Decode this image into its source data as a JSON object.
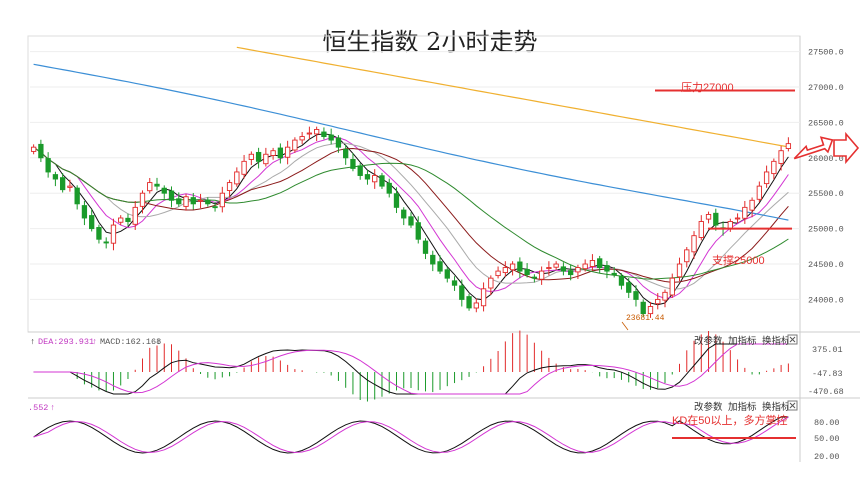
{
  "title": "恒生指数 2小时走势",
  "chart_data": {
    "type": "candlestick",
    "title": "恒生指数 2小时走势",
    "y_ticks": [
      "27500.0",
      "27000.0",
      "26500.0",
      "26000.0",
      "25500.0",
      "25000.0",
      "24500.0",
      "24000.0"
    ],
    "y_tick_values": [
      27500,
      27000,
      26500,
      26000,
      25500,
      25000,
      24500,
      24000
    ],
    "ylim": [
      23540,
      27720
    ],
    "low_label": "23681.44",
    "low_value": 23681.44,
    "annotations": {
      "resistance": {
        "label": "压力27000",
        "value": 26950
      },
      "support": {
        "label": "支撑25000",
        "value": 25000
      },
      "kd": {
        "label": "KD在50以上，多方掌控",
        "value": 50
      }
    },
    "closes": [
      26150,
      26000,
      25800,
      25700,
      25550,
      25600,
      25350,
      25150,
      25000,
      24850,
      24800,
      25050,
      25150,
      25100,
      25300,
      25500,
      25650,
      25600,
      25500,
      25400,
      25350,
      25450,
      25350,
      25400,
      25350,
      25300,
      25500,
      25650,
      25800,
      25950,
      26050,
      25950,
      26050,
      26100,
      26000,
      26150,
      26250,
      26300,
      26350,
      26400,
      26300,
      26250,
      26150,
      26000,
      25850,
      25750,
      25700,
      25750,
      25600,
      25500,
      25300,
      25150,
      25050,
      24850,
      24650,
      24500,
      24400,
      24300,
      24200,
      24000,
      23880,
      23950,
      24150,
      24300,
      24400,
      24450,
      24500,
      24400,
      24350,
      24300,
      24400,
      24450,
      24500,
      24400,
      24350,
      24450,
      24500,
      24550,
      24450,
      24400,
      24350,
      24200,
      24100,
      24000,
      23800,
      23900,
      24000,
      24100,
      24300,
      24500,
      24700,
      24900,
      25100,
      25200,
      25050,
      25000,
      25100,
      25150,
      25300,
      25400,
      25600,
      25800,
      25950,
      26100,
      26200
    ],
    "legend_strip": {
      "dea_label": "DEA:293.931",
      "macd_label": "MACD:162.168",
      "kd_label": ".552"
    },
    "macd_ticks": [
      "375.01",
      "-47.83",
      "-470.68"
    ],
    "kd_ticks": [
      "80.00",
      "50.00",
      "20.00"
    ],
    "toolbar": [
      "改参数",
      "加指标",
      "换指标"
    ],
    "colors": {
      "up": "#e22a2a",
      "down": "#1a9a2a",
      "ma_black": "#111111",
      "ma_magenta": "#d336d3",
      "ma_gray": "#aaaaaa",
      "ma_brown": "#8b1a1a",
      "ma_green": "#2e8a2e",
      "ma_blue": "#3c8fd6",
      "ma_orange": "#f0b030",
      "annotation": "#e53030"
    }
  }
}
